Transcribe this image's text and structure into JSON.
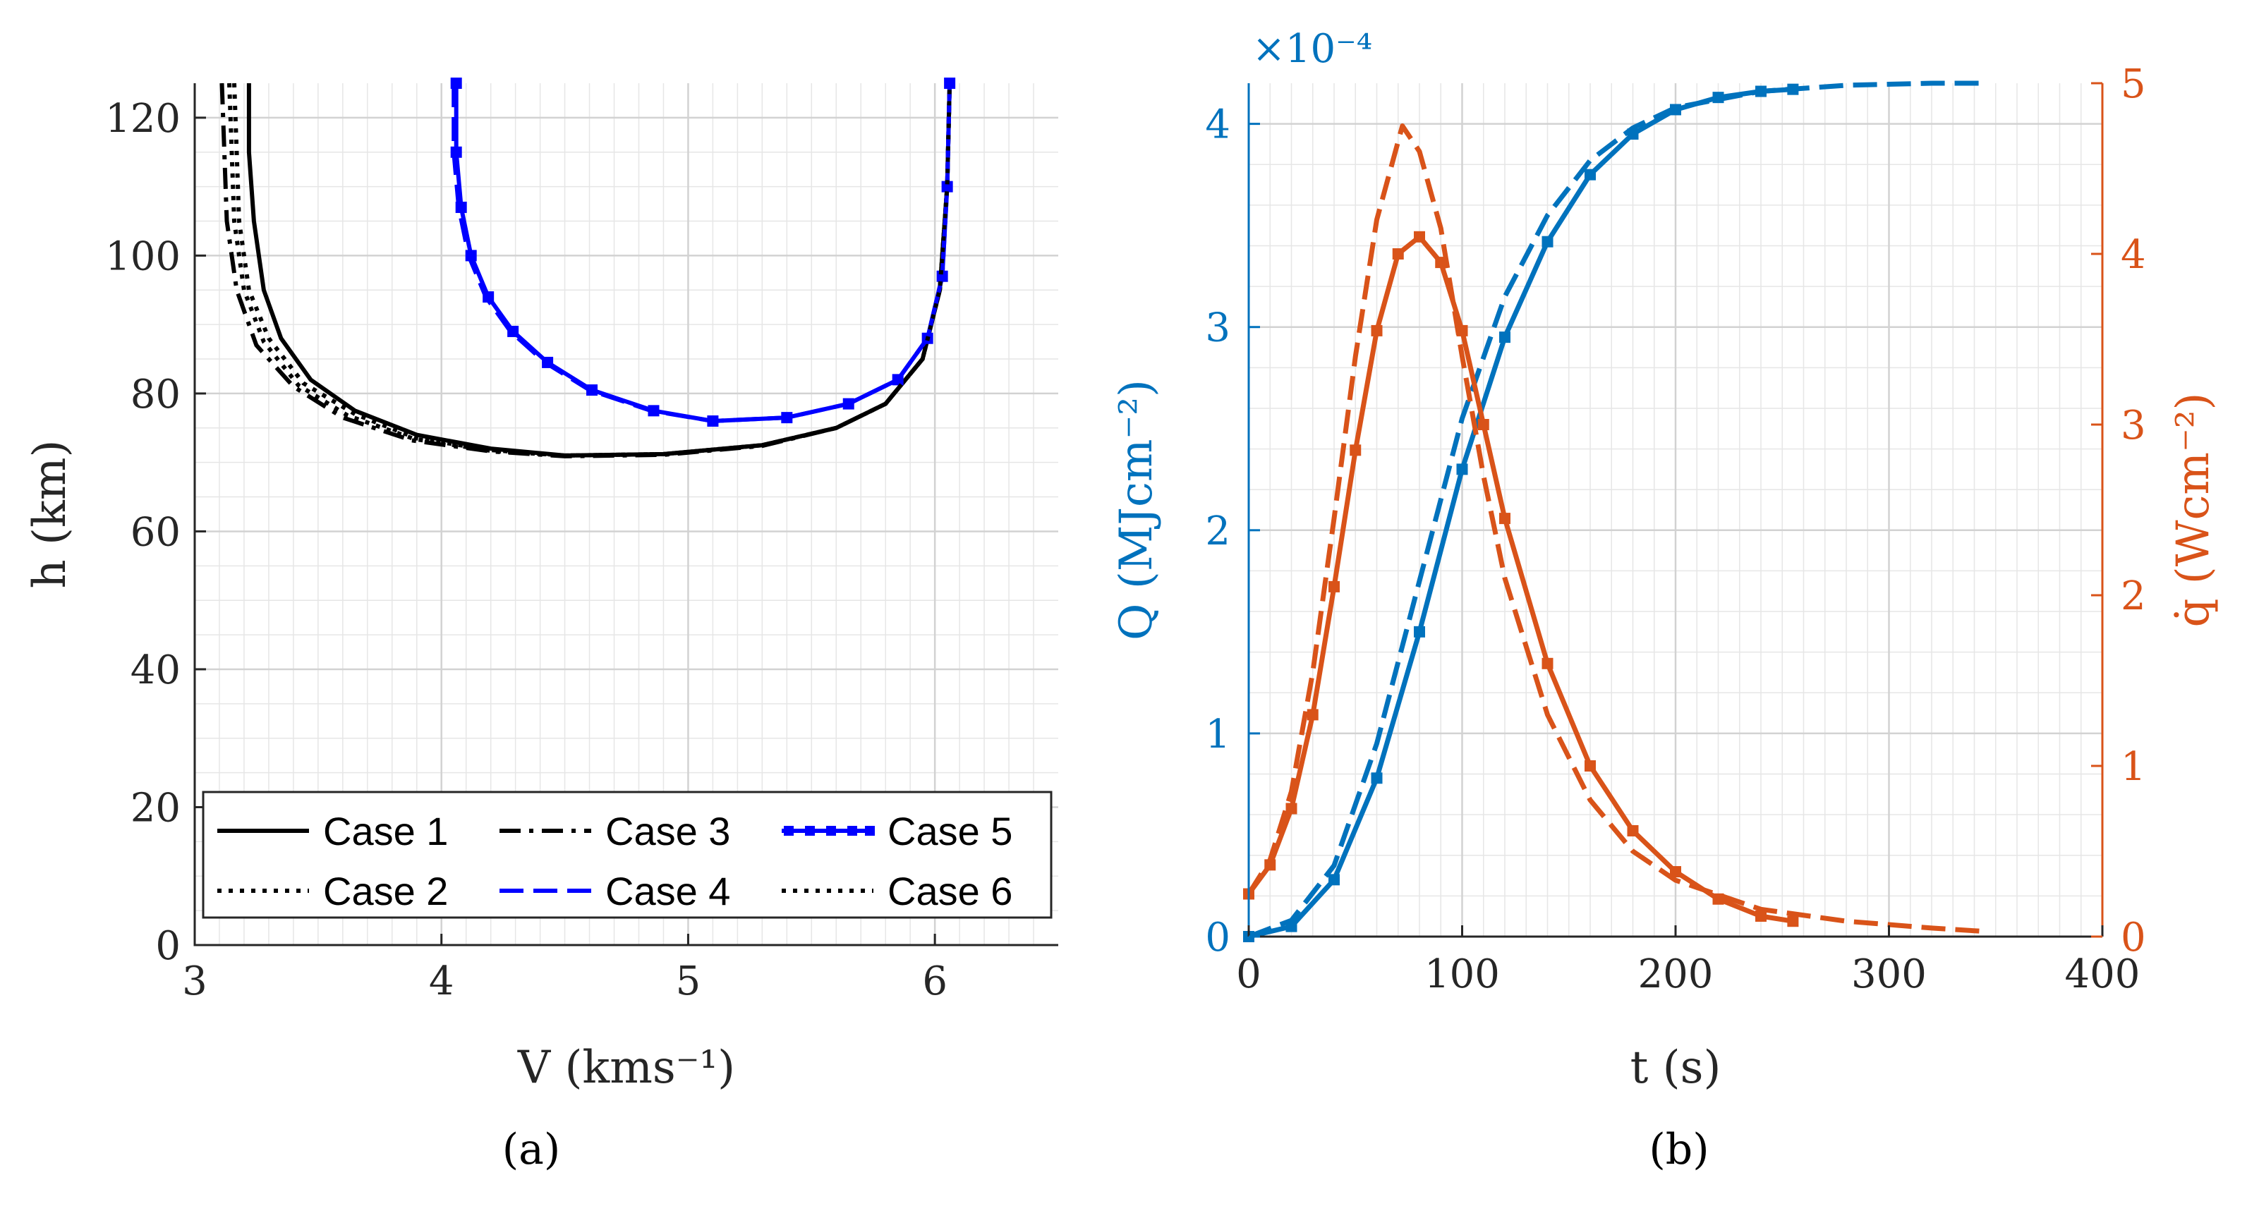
{
  "chart_data": [
    {
      "type": "line",
      "panel": "a",
      "caption": "(a)",
      "xlabel": "V (kms⁻¹)",
      "ylabel": "h (km)",
      "xlim": [
        3,
        6.5
      ],
      "ylim": [
        0,
        125
      ],
      "xticks": [
        3,
        4,
        5,
        6
      ],
      "yticks": [
        0,
        20,
        40,
        60,
        80,
        100,
        120
      ],
      "grid": true,
      "minor_grid": true,
      "legend": {
        "placement": "bottom",
        "columns": 3
      },
      "series": [
        {
          "name": "Case 1",
          "color": "#000000",
          "style": "solid",
          "points": [
            [
              3.22,
              125
            ],
            [
              3.22,
              115
            ],
            [
              3.24,
              105
            ],
            [
              3.28,
              95
            ],
            [
              3.35,
              88
            ],
            [
              3.47,
              82
            ],
            [
              3.65,
              77.5
            ],
            [
              3.9,
              74
            ],
            [
              4.2,
              72
            ],
            [
              4.5,
              71
            ],
            [
              4.9,
              71.2
            ],
            [
              5.3,
              72.5
            ],
            [
              5.6,
              75
            ],
            [
              5.8,
              78.5
            ],
            [
              5.95,
              85
            ],
            [
              6.02,
              95
            ],
            [
              6.05,
              110
            ],
            [
              6.06,
              125
            ]
          ]
        },
        {
          "name": "Case 2",
          "color": "#000000",
          "style": "dotted",
          "points": [
            [
              3.16,
              125
            ],
            [
              3.17,
              115
            ],
            [
              3.18,
              105
            ],
            [
              3.22,
              95
            ],
            [
              3.3,
              88
            ],
            [
              3.44,
              81.5
            ],
            [
              3.65,
              77
            ],
            [
              3.9,
              73.5
            ],
            [
              4.2,
              71.8
            ],
            [
              4.5,
              71
            ],
            [
              4.9,
              71.2
            ],
            [
              5.3,
              72.5
            ],
            [
              5.6,
              75
            ],
            [
              5.8,
              78.5
            ],
            [
              5.95,
              85
            ],
            [
              6.02,
              95
            ],
            [
              6.05,
              110
            ],
            [
              6.06,
              125
            ]
          ]
        },
        {
          "name": "Case 3",
          "color": "#000000",
          "style": "dashdot",
          "points": [
            [
              3.11,
              125
            ],
            [
              3.12,
              115
            ],
            [
              3.13,
              105
            ],
            [
              3.17,
              95
            ],
            [
              3.25,
              87
            ],
            [
              3.4,
              81
            ],
            [
              3.6,
              76.5
            ],
            [
              3.88,
              73.2
            ],
            [
              4.2,
              71.6
            ],
            [
              4.5,
              70.9
            ],
            [
              4.9,
              71.1
            ],
            [
              5.3,
              72.4
            ],
            [
              5.6,
              75
            ],
            [
              5.8,
              78.5
            ],
            [
              5.95,
              85
            ],
            [
              6.02,
              95
            ],
            [
              6.05,
              110
            ],
            [
              6.06,
              125
            ]
          ]
        },
        {
          "name": "Case 4",
          "color": "#0000ff",
          "style": "dashed",
          "points": [
            [
              4.05,
              125
            ],
            [
              4.05,
              115
            ],
            [
              4.07,
              107
            ],
            [
              4.11,
              100
            ],
            [
              4.18,
              94
            ],
            [
              4.28,
              89
            ],
            [
              4.42,
              84.5
            ],
            [
              4.6,
              80.5
            ],
            [
              4.85,
              77.5
            ],
            [
              5.1,
              76
            ],
            [
              5.4,
              76.5
            ],
            [
              5.65,
              78.5
            ],
            [
              5.85,
              82
            ],
            [
              5.97,
              88
            ],
            [
              6.03,
              97
            ],
            [
              6.05,
              110
            ],
            [
              6.06,
              125
            ]
          ]
        },
        {
          "name": "Case 5",
          "color": "#0000ff",
          "style": "solid-square",
          "points": [
            [
              4.06,
              125
            ],
            [
              4.06,
              115
            ],
            [
              4.08,
              107
            ],
            [
              4.12,
              100
            ],
            [
              4.19,
              94
            ],
            [
              4.29,
              89
            ],
            [
              4.43,
              84.5
            ],
            [
              4.61,
              80.5
            ],
            [
              4.86,
              77.5
            ],
            [
              5.1,
              76
            ],
            [
              5.4,
              76.5
            ],
            [
              5.65,
              78.5
            ],
            [
              5.85,
              82
            ],
            [
              5.97,
              88
            ],
            [
              6.03,
              97
            ],
            [
              6.05,
              110
            ],
            [
              6.06,
              125
            ]
          ]
        },
        {
          "name": "Case 6",
          "color": "#000000",
          "style": "dotted",
          "points": [
            [
              3.14,
              125
            ],
            [
              3.15,
              115
            ],
            [
              3.16,
              105
            ],
            [
              3.2,
              95
            ],
            [
              3.28,
              87.5
            ],
            [
              3.42,
              81.2
            ],
            [
              3.62,
              76.8
            ],
            [
              3.89,
              73.4
            ],
            [
              4.2,
              71.7
            ],
            [
              4.5,
              71
            ],
            [
              4.9,
              71.2
            ],
            [
              5.3,
              72.5
            ],
            [
              5.6,
              75
            ],
            [
              5.8,
              78.5
            ],
            [
              5.95,
              85
            ],
            [
              6.02,
              95
            ],
            [
              6.05,
              110
            ],
            [
              6.06,
              125
            ]
          ]
        }
      ]
    },
    {
      "type": "line",
      "panel": "b",
      "caption": "(b)",
      "xlabel": "t (s)",
      "ylabel_left": "Q (MJcm⁻²)",
      "ylabel_right": "q̇ (Wcm⁻²)",
      "exponent_label": "×10⁻⁴",
      "xlim": [
        0,
        400
      ],
      "ylim_left": [
        0,
        4.2
      ],
      "ylim_right": [
        0,
        5
      ],
      "xticks": [
        0,
        100,
        200,
        300,
        400
      ],
      "yticks_left": [
        0,
        1,
        2,
        3,
        4
      ],
      "yticks_right": [
        0,
        1,
        2,
        3,
        4,
        5
      ],
      "grid": true,
      "minor_grid": true,
      "left_color": "#0072bd",
      "right_color": "#d95319",
      "series": [
        {
          "axis": "left",
          "style": "dashed",
          "points": [
            [
              0,
              0
            ],
            [
              20,
              0.08
            ],
            [
              40,
              0.35
            ],
            [
              60,
              0.95
            ],
            [
              80,
              1.75
            ],
            [
              100,
              2.55
            ],
            [
              120,
              3.15
            ],
            [
              140,
              3.55
            ],
            [
              160,
              3.82
            ],
            [
              180,
              3.98
            ],
            [
              200,
              4.08
            ],
            [
              240,
              4.16
            ],
            [
              280,
              4.19
            ],
            [
              320,
              4.2
            ],
            [
              345,
              4.2
            ]
          ]
        },
        {
          "axis": "left",
          "style": "solid-square",
          "points": [
            [
              0,
              0
            ],
            [
              20,
              0.05
            ],
            [
              40,
              0.28
            ],
            [
              60,
              0.78
            ],
            [
              80,
              1.5
            ],
            [
              100,
              2.3
            ],
            [
              120,
              2.95
            ],
            [
              140,
              3.42
            ],
            [
              160,
              3.75
            ],
            [
              180,
              3.95
            ],
            [
              200,
              4.07
            ],
            [
              220,
              4.13
            ],
            [
              240,
              4.16
            ],
            [
              255,
              4.17
            ]
          ]
        },
        {
          "axis": "right",
          "style": "dashed",
          "points": [
            [
              0,
              0.25
            ],
            [
              10,
              0.45
            ],
            [
              20,
              0.85
            ],
            [
              30,
              1.55
            ],
            [
              40,
              2.45
            ],
            [
              50,
              3.4
            ],
            [
              60,
              4.2
            ],
            [
              72,
              4.75
            ],
            [
              80,
              4.6
            ],
            [
              90,
              4.15
            ],
            [
              100,
              3.4
            ],
            [
              110,
              2.7
            ],
            [
              120,
              2.1
            ],
            [
              140,
              1.3
            ],
            [
              160,
              0.8
            ],
            [
              180,
              0.5
            ],
            [
              200,
              0.33
            ],
            [
              240,
              0.16
            ],
            [
              280,
              0.09
            ],
            [
              320,
              0.05
            ],
            [
              345,
              0.03
            ]
          ]
        },
        {
          "axis": "right",
          "style": "solid-square",
          "points": [
            [
              0,
              0.25
            ],
            [
              10,
              0.42
            ],
            [
              20,
              0.75
            ],
            [
              30,
              1.3
            ],
            [
              40,
              2.05
            ],
            [
              50,
              2.85
            ],
            [
              60,
              3.55
            ],
            [
              70,
              4.0
            ],
            [
              80,
              4.1
            ],
            [
              90,
              3.95
            ],
            [
              100,
              3.55
            ],
            [
              110,
              3.0
            ],
            [
              120,
              2.45
            ],
            [
              140,
              1.6
            ],
            [
              160,
              1.0
            ],
            [
              180,
              0.62
            ],
            [
              200,
              0.38
            ],
            [
              220,
              0.22
            ],
            [
              240,
              0.12
            ],
            [
              255,
              0.09
            ]
          ]
        }
      ]
    }
  ]
}
